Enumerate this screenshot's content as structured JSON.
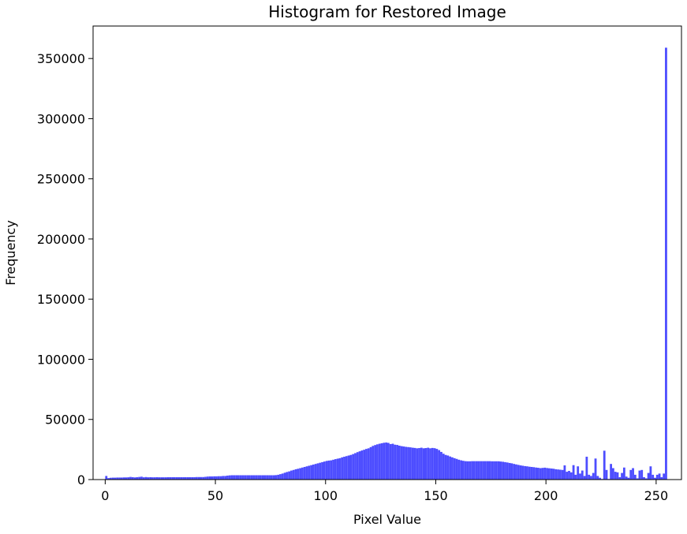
{
  "chart_data": {
    "type": "bar",
    "title": "Histogram for Restored Image",
    "xlabel": "Pixel Value",
    "ylabel": "Frequency",
    "xlim": [
      -5.5,
      261.5
    ],
    "ylim": [
      0,
      377000
    ],
    "xticks": [
      0,
      50,
      100,
      150,
      200,
      250
    ],
    "yticks": [
      0,
      50000,
      100000,
      150000,
      200000,
      250000,
      300000,
      350000
    ],
    "grid": false,
    "legend": "none",
    "bar_color": "#4d4dff",
    "bins": [
      0,
      1,
      2,
      3,
      4,
      5,
      6,
      7,
      8,
      9,
      10,
      11,
      12,
      13,
      14,
      15,
      16,
      17,
      18,
      19,
      20,
      21,
      22,
      23,
      24,
      25,
      26,
      27,
      28,
      29,
      30,
      31,
      32,
      33,
      34,
      35,
      36,
      37,
      38,
      39,
      40,
      41,
      42,
      43,
      44,
      45,
      46,
      47,
      48,
      49,
      50,
      51,
      52,
      53,
      54,
      55,
      56,
      57,
      58,
      59,
      60,
      61,
      62,
      63,
      64,
      65,
      66,
      67,
      68,
      69,
      70,
      71,
      72,
      73,
      74,
      75,
      76,
      77,
      78,
      79,
      80,
      81,
      82,
      83,
      84,
      85,
      86,
      87,
      88,
      89,
      90,
      91,
      92,
      93,
      94,
      95,
      96,
      97,
      98,
      99,
      100,
      101,
      102,
      103,
      104,
      105,
      106,
      107,
      108,
      109,
      110,
      111,
      112,
      113,
      114,
      115,
      116,
      117,
      118,
      119,
      120,
      121,
      122,
      123,
      124,
      125,
      126,
      127,
      128,
      129,
      130,
      131,
      132,
      133,
      134,
      135,
      136,
      137,
      138,
      139,
      140,
      141,
      142,
      143,
      144,
      145,
      146,
      147,
      148,
      149,
      150,
      151,
      152,
      153,
      154,
      155,
      156,
      157,
      158,
      159,
      160,
      161,
      162,
      163,
      164,
      165,
      166,
      167,
      168,
      169,
      170,
      171,
      172,
      173,
      174,
      175,
      176,
      177,
      178,
      179,
      180,
      181,
      182,
      183,
      184,
      185,
      186,
      187,
      188,
      189,
      190,
      191,
      192,
      193,
      194,
      195,
      196,
      197,
      198,
      199,
      200,
      201,
      202,
      203,
      204,
      205,
      206,
      207,
      208,
      209,
      210,
      211,
      212,
      213,
      214,
      215,
      216,
      217,
      218,
      219,
      220,
      221,
      222,
      223,
      224,
      225,
      226,
      227,
      228,
      229,
      230,
      231,
      232,
      233,
      234,
      235,
      236,
      237,
      238,
      239,
      240,
      241,
      242,
      243,
      244,
      245,
      246,
      247,
      248,
      249,
      250,
      251,
      252,
      253,
      254,
      255
    ],
    "values": [
      3000,
      1200,
      1500,
      1600,
      1600,
      1700,
      1700,
      1700,
      1800,
      1800,
      1900,
      2200,
      2000,
      1800,
      2000,
      2200,
      2400,
      1900,
      2100,
      1900,
      2000,
      1900,
      1900,
      2000,
      1900,
      1900,
      1900,
      1900,
      2000,
      2000,
      2000,
      2000,
      2000,
      2000,
      2000,
      2000,
      2000,
      2000,
      2000,
      2000,
      2000,
      2100,
      2100,
      2100,
      2100,
      2300,
      2500,
      2600,
      2600,
      2700,
      2700,
      2800,
      2800,
      3000,
      3000,
      3300,
      3500,
      3600,
      3600,
      3600,
      3600,
      3600,
      3600,
      3600,
      3600,
      3600,
      3600,
      3600,
      3600,
      3600,
      3600,
      3600,
      3600,
      3600,
      3600,
      3600,
      3600,
      3700,
      4000,
      4500,
      5000,
      5700,
      6300,
      6800,
      7500,
      8000,
      8600,
      9000,
      9500,
      10000,
      10500,
      11000,
      11500,
      12000,
      12500,
      13000,
      13500,
      14000,
      14500,
      15000,
      15500,
      15800,
      16000,
      16500,
      17000,
      17400,
      17800,
      18500,
      19000,
      19500,
      20000,
      20500,
      21200,
      22000,
      22800,
      23500,
      24200,
      24800,
      25500,
      26000,
      27000,
      28000,
      28700,
      29300,
      29800,
      30200,
      30600,
      30800,
      30500,
      29500,
      29800,
      29000,
      28800,
      28200,
      27800,
      27500,
      27200,
      27000,
      26800,
      26500,
      26300,
      26000,
      26200,
      26500,
      26000,
      26200,
      26500,
      26000,
      26300,
      26100,
      25500,
      24500,
      23000,
      21500,
      20500,
      20000,
      19200,
      18500,
      17800,
      17200,
      16500,
      16000,
      15600,
      15300,
      15200,
      15200,
      15300,
      15300,
      15300,
      15300,
      15300,
      15300,
      15300,
      15300,
      15300,
      15200,
      15200,
      15200,
      15200,
      15000,
      14800,
      14500,
      14200,
      13800,
      13500,
      13000,
      12600,
      12200,
      11800,
      11500,
      11200,
      11000,
      10700,
      10500,
      10300,
      10000,
      9800,
      9500,
      9700,
      9900,
      9600,
      9400,
      9200,
      9000,
      8600,
      8400,
      8200,
      8000,
      11800,
      6500,
      7200,
      6000,
      12000,
      4000,
      11000,
      5000,
      7500,
      3000,
      19000,
      4000,
      3000,
      5500,
      17500,
      3000,
      1500,
      500,
      24000,
      8000,
      500,
      13000,
      9500,
      6500,
      6000,
      2000,
      5500,
      10000,
      2500,
      1500,
      8000,
      9500,
      4000,
      1000,
      7500,
      8000,
      2000,
      1000,
      5500,
      11000,
      4000,
      1500,
      4000,
      5000,
      2000,
      5000,
      359000,
      0
    ]
  }
}
